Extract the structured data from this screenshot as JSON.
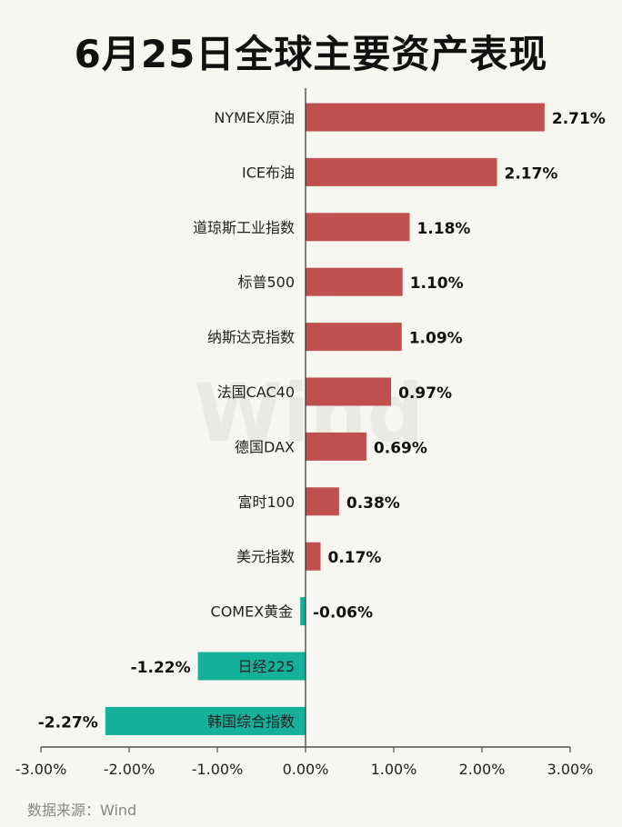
{
  "title": "6月25日全球主要资产表现",
  "source": "数据来源：Wind",
  "watermark": "Wind",
  "colors": {
    "positive": "#c0504d",
    "negative": "#15b09a",
    "axis": "#333333"
  },
  "chart_data": {
    "type": "bar",
    "orientation": "horizontal",
    "categories": [
      "NYMEX原油",
      "ICE布油",
      "道琼斯工业指数",
      "标普500",
      "纳斯达克指数",
      "法国CAC40",
      "德国DAX",
      "富时100",
      "美元指数",
      "COMEX黄金",
      "日经225",
      "韩国综合指数"
    ],
    "values": [
      2.71,
      2.17,
      1.18,
      1.1,
      1.09,
      0.97,
      0.69,
      0.38,
      0.17,
      -0.06,
      -1.22,
      -2.27
    ],
    "value_labels": [
      "2.71%",
      "2.17%",
      "1.18%",
      "1.10%",
      "1.09%",
      "0.97%",
      "0.69%",
      "0.38%",
      "0.17%",
      "-0.06%",
      "-1.22%",
      "-2.27%"
    ],
    "x_ticks": [
      -3,
      -2,
      -1,
      0,
      1,
      2,
      3
    ],
    "x_tick_labels": [
      "-3.00%",
      "-2.00%",
      "-1.00%",
      "0.00%",
      "1.00%",
      "2.00%",
      "3.00%"
    ],
    "xlim": [
      -3,
      3
    ],
    "grid": false,
    "legend": "none"
  }
}
